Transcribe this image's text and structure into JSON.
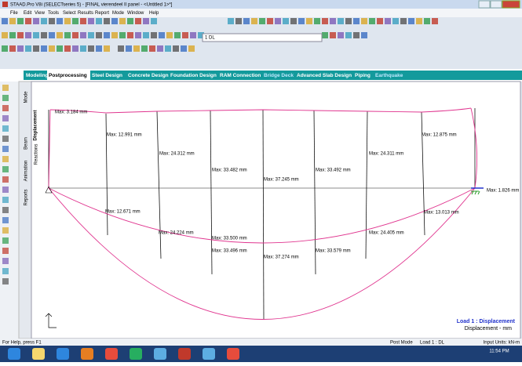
{
  "title_bar": {
    "title": "STAAD.Pro V8i (SELECTseries 5) - [FINAL vierendeel II panel - <Untitled 1>*]"
  },
  "menu": [
    "File",
    "Edit",
    "View",
    "Tools",
    "Select",
    "Results",
    "Report",
    "Mode",
    "Window",
    "Help"
  ],
  "toolbar": {
    "load_case": "1 DL"
  },
  "tabs": [
    "Modeling",
    "Postprocessing",
    "Steel Design",
    "Concrete Design",
    "Foundation Design",
    "RAM Connection",
    "Bridge Deck",
    "Advanced Slab Design",
    "Piping",
    "Earthquake"
  ],
  "side_tabs": [
    "Mode",
    "Displacement",
    "Beam",
    "Reactions",
    "Animation",
    "Reports"
  ],
  "viewport": {
    "labels": [
      "Max: 3.184 mm",
      "Max: 12.991 mm",
      "Max: 24.312 mm",
      "Max: 33.482 mm",
      "Max: 37.245 mm",
      "Max: 33.492 mm",
      "Max: 24.311 mm",
      "Max: 12.875 mm",
      "Max: 1.826 mm",
      "Max: 12.671 mm",
      "Max: 24.224 mm",
      "Max: 33.500 mm",
      "Max: 33.496 mm",
      "Max: 37.274 mm",
      "Max: 33.579 mm",
      "Max: 24.405 mm",
      "Max: 13.013 mm"
    ],
    "legend": {
      "title": "Load 1 : Displacement",
      "units": "Displacement - mm"
    }
  },
  "status_bar": {
    "help": "For Help, press F1",
    "mode": "Post Mode",
    "load": "Load 1 : DL",
    "units": "Input Units: kN-m"
  },
  "taskbar": {
    "time": "11:54 PM"
  }
}
